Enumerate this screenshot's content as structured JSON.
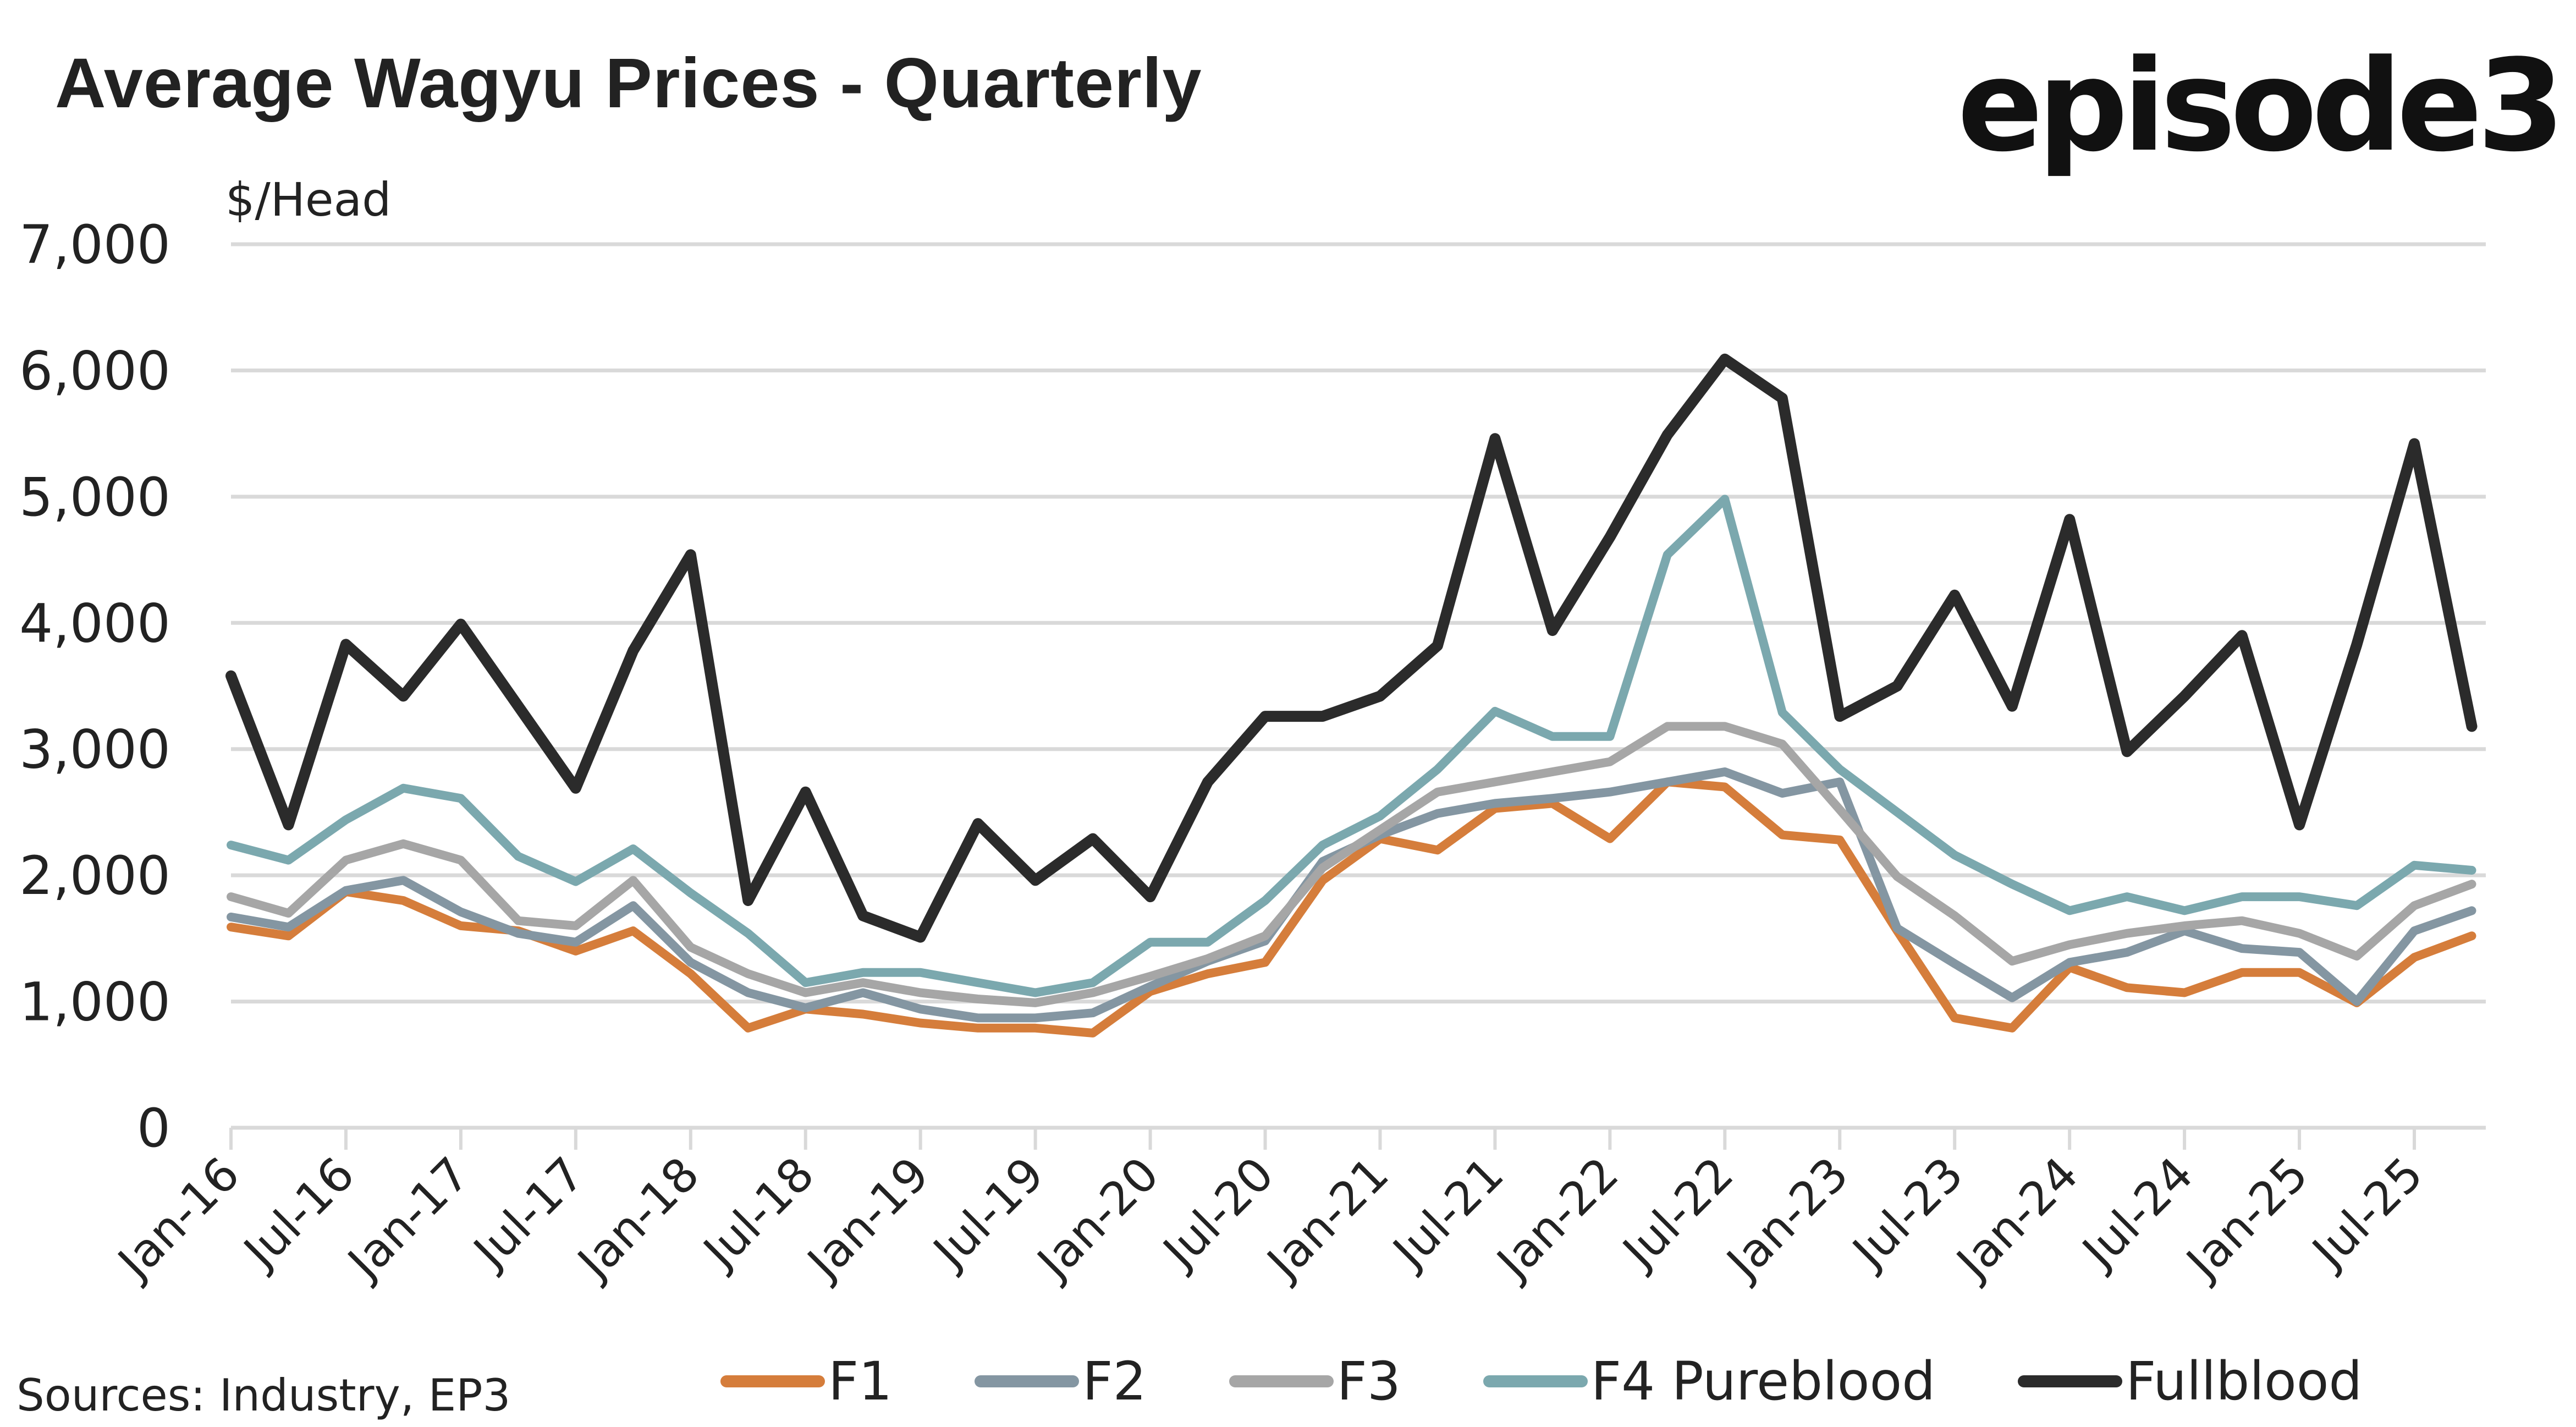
{
  "header": {
    "title": "Average Wagyu Prices - Quarterly",
    "logo_text": "episode3"
  },
  "footer": {
    "source": "Sources: Industry, EP3"
  },
  "chart_data": {
    "type": "line",
    "title": "Average Wagyu Prices - Quarterly",
    "xlabel": "",
    "ylabel": "$/Head",
    "ylim": [
      0,
      7000
    ],
    "yticks": [
      0,
      1000,
      2000,
      3000,
      4000,
      5000,
      6000,
      7000
    ],
    "ytick_labels": [
      "0",
      "1,000",
      "2,000",
      "3,000",
      "4,000",
      "5,000",
      "6,000",
      "7,000"
    ],
    "grid": true,
    "legend_position": "bottom",
    "x": [
      "Jan-16",
      "Apr-16",
      "Jul-16",
      "Oct-16",
      "Jan-17",
      "Apr-17",
      "Jul-17",
      "Oct-17",
      "Jan-18",
      "Apr-18",
      "Jul-18",
      "Oct-18",
      "Jan-19",
      "Apr-19",
      "Jul-19",
      "Oct-19",
      "Jan-20",
      "Apr-20",
      "Jul-20",
      "Oct-20",
      "Jan-21",
      "Apr-21",
      "Jul-21",
      "Oct-21",
      "Jan-22",
      "Apr-22",
      "Jul-22",
      "Oct-22",
      "Jan-23",
      "Apr-23",
      "Jul-23",
      "Oct-23",
      "Jan-24",
      "Apr-24",
      "Jul-24",
      "Oct-24",
      "Jan-25",
      "Apr-25",
      "Jul-25",
      "Oct-25"
    ],
    "xtick_labels": [
      "Jan-16",
      "Jul-16",
      "Jan-17",
      "Jul-17",
      "Jan-18",
      "Jul-18",
      "Jan-19",
      "Jul-19",
      "Jan-20",
      "Jul-20",
      "Jan-21",
      "Jul-21",
      "Jan-22",
      "Jul-22",
      "Jan-23",
      "Jul-23",
      "Jan-24",
      "Jul-24",
      "Jan-25",
      "Jul-25"
    ],
    "series": [
      {
        "name": "F1",
        "color": "#d57d3b",
        "values": [
          1590,
          1520,
          1870,
          1800,
          1600,
          1560,
          1400,
          1560,
          1220,
          790,
          940,
          900,
          830,
          790,
          790,
          750,
          1080,
          1220,
          1310,
          1960,
          2290,
          2200,
          2530,
          2570,
          2290,
          2740,
          2700,
          2320,
          2280,
          1560,
          870,
          790,
          1270,
          1110,
          1070,
          1230,
          1230,
          990,
          1350,
          1520
        ]
      },
      {
        "name": "F2",
        "color": "#8496a2",
        "values": [
          1670,
          1590,
          1880,
          1960,
          1710,
          1540,
          1470,
          1760,
          1310,
          1070,
          950,
          1070,
          940,
          870,
          870,
          910,
          1120,
          1320,
          1480,
          2110,
          2320,
          2490,
          2570,
          2610,
          2660,
          2740,
          2820,
          2650,
          2740,
          1580,
          1300,
          1030,
          1310,
          1390,
          1560,
          1420,
          1390,
          1000,
          1560,
          1720
        ]
      },
      {
        "name": "F3",
        "color": "#a6a6a6",
        "values": [
          1830,
          1700,
          2120,
          2250,
          2120,
          1640,
          1600,
          1960,
          1430,
          1220,
          1070,
          1150,
          1070,
          1020,
          990,
          1070,
          1200,
          1340,
          1520,
          2060,
          2360,
          2660,
          2740,
          2820,
          2900,
          3180,
          3180,
          3040,
          2520,
          1990,
          1680,
          1320,
          1450,
          1540,
          1600,
          1640,
          1540,
          1360,
          1760,
          1930
        ]
      },
      {
        "name": "F4 Pureblood",
        "color": "#7ba8ae",
        "values": [
          2240,
          2120,
          2440,
          2690,
          2610,
          2150,
          1950,
          2210,
          1860,
          1540,
          1150,
          1230,
          1230,
          1150,
          1070,
          1150,
          1470,
          1470,
          1800,
          2240,
          2470,
          2840,
          3300,
          3100,
          3100,
          4540,
          4980,
          3290,
          2840,
          2500,
          2160,
          1930,
          1720,
          1830,
          1720,
          1830,
          1830,
          1760,
          2080,
          2040
        ]
      },
      {
        "name": "Fullblood",
        "color": "#2b2b2b",
        "values": [
          3580,
          2400,
          3830,
          3420,
          3990,
          3340,
          2690,
          3780,
          4540,
          1800,
          2660,
          1680,
          1510,
          2410,
          1960,
          2290,
          1830,
          2740,
          3260,
          3260,
          3420,
          3820,
          5460,
          3940,
          4680,
          5490,
          6090,
          5780,
          3260,
          3500,
          4220,
          3340,
          4820,
          2980,
          3420,
          3900,
          2400,
          3830,
          5420,
          3180
        ]
      }
    ]
  }
}
